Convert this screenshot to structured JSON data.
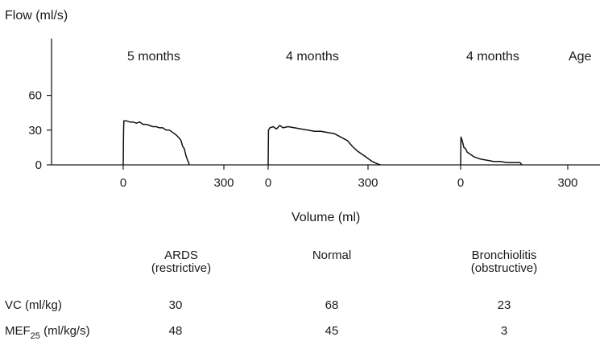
{
  "chart_data": {
    "type": "line",
    "ylabel": "Flow (ml/s)",
    "xlabel": "Volume (ml)",
    "age_label": "Age",
    "y_ticks": [
      "0",
      "30",
      "60"
    ],
    "ylim": [
      0,
      80
    ],
    "panels": [
      {
        "age": "5 months",
        "x_ticks": [
          "0",
          "300"
        ],
        "group_label": [
          "ARDS",
          "(restrictive)"
        ],
        "vc": "30",
        "mef25": "48",
        "x": [
          0,
          1,
          2,
          10,
          20,
          30,
          40,
          50,
          60,
          70,
          80,
          90,
          100,
          110,
          120,
          130,
          140,
          150,
          160,
          170,
          175,
          180,
          185,
          190,
          195,
          198,
          200
        ],
        "y": [
          0,
          28,
          38,
          38,
          37,
          37,
          36,
          37,
          35,
          35,
          34,
          33,
          33,
          32,
          32,
          30,
          30,
          28,
          26,
          23,
          21,
          16,
          14,
          8,
          4,
          2,
          0
        ]
      },
      {
        "age": "4 months",
        "x_ticks": [
          "0",
          "300"
        ],
        "group_label": [
          "Normal"
        ],
        "vc": "68",
        "mef25": "45",
        "x": [
          0,
          1,
          5,
          15,
          25,
          35,
          45,
          60,
          80,
          100,
          120,
          140,
          160,
          180,
          200,
          220,
          240,
          255,
          270,
          285,
          300,
          315,
          330,
          340
        ],
        "y": [
          0,
          30,
          32,
          33,
          31,
          34,
          32,
          33,
          32,
          31,
          30,
          29,
          29,
          28,
          27,
          24,
          21,
          16,
          12,
          9,
          6,
          3,
          1,
          0
        ]
      },
      {
        "age": "4 months",
        "x_ticks": [
          "0",
          "300"
        ],
        "group_label": [
          "Bronchiolitis",
          "(obstructive)"
        ],
        "vc": "23",
        "mef25": "3",
        "x": [
          0,
          1,
          5,
          10,
          15,
          20,
          30,
          40,
          50,
          60,
          80,
          100,
          120,
          140,
          160,
          180,
          185
        ],
        "y": [
          0,
          24,
          21,
          15,
          14,
          11,
          9,
          7,
          6,
          5,
          4,
          3,
          3,
          2,
          2,
          2,
          0
        ]
      }
    ]
  },
  "table": {
    "rows": [
      {
        "label": "VC (ml/kg)",
        "key": "vc"
      },
      {
        "label_main": "MEF",
        "label_sub": "25",
        "label_rest": " (ml/kg/s)",
        "key": "mef25"
      }
    ]
  }
}
